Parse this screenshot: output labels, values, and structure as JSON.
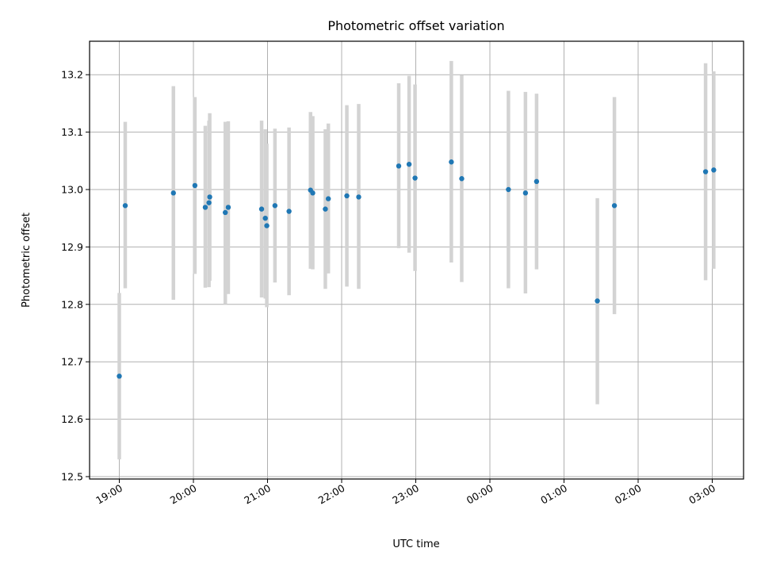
{
  "chart_data": {
    "type": "scatter",
    "title": "Photometric offset variation",
    "xlabel": "UTC time",
    "ylabel": "Photometric offset",
    "x_tick_labels": [
      "19:00",
      "20:00",
      "21:00",
      "22:00",
      "23:00",
      "00:00",
      "01:00",
      "02:00",
      "03:00"
    ],
    "x_tick_hours": [
      0,
      1,
      2,
      3,
      4,
      5,
      6,
      7,
      8
    ],
    "y_ticks": [
      12.5,
      12.6,
      12.7,
      12.8,
      12.9,
      13.0,
      13.1,
      13.2
    ],
    "y_tick_labels": [
      "12.5",
      "12.6",
      "12.7",
      "12.8",
      "12.9",
      "13.0",
      "13.1",
      "13.2"
    ],
    "xlim_hours_since_1900": [
      -0.4,
      8.42
    ],
    "ylim": [
      12.495,
      13.262
    ],
    "grid": true,
    "marker_color": "#1f77b4",
    "errorbar_color": "#d3d3d3",
    "points": [
      {
        "t": 0.0,
        "y": 12.675,
        "lo": 12.53,
        "hi": 12.82
      },
      {
        "t": 0.08,
        "y": 12.972,
        "lo": 12.828,
        "hi": 13.118
      },
      {
        "t": 0.73,
        "y": 12.994,
        "lo": 12.808,
        "hi": 13.18
      },
      {
        "t": 1.02,
        "y": 13.007,
        "lo": 12.853,
        "hi": 13.161
      },
      {
        "t": 1.16,
        "y": 12.969,
        "lo": 12.829,
        "hi": 13.111
      },
      {
        "t": 1.21,
        "y": 12.977,
        "lo": 12.83,
        "hi": 13.12
      },
      {
        "t": 1.22,
        "y": 12.987,
        "lo": 12.841,
        "hi": 13.133
      },
      {
        "t": 1.43,
        "y": 12.96,
        "lo": 12.8,
        "hi": 13.118
      },
      {
        "t": 1.47,
        "y": 12.969,
        "lo": 12.818,
        "hi": 13.119
      },
      {
        "t": 1.92,
        "y": 12.966,
        "lo": 12.812,
        "hi": 13.12
      },
      {
        "t": 1.97,
        "y": 12.95,
        "lo": 12.81,
        "hi": 13.105
      },
      {
        "t": 1.99,
        "y": 12.937,
        "lo": 12.795,
        "hi": 13.08
      },
      {
        "t": 2.1,
        "y": 12.972,
        "lo": 12.838,
        "hi": 13.106
      },
      {
        "t": 2.29,
        "y": 12.962,
        "lo": 12.816,
        "hi": 13.108
      },
      {
        "t": 2.58,
        "y": 12.999,
        "lo": 12.862,
        "hi": 13.135
      },
      {
        "t": 2.61,
        "y": 12.994,
        "lo": 12.861,
        "hi": 13.128
      },
      {
        "t": 2.78,
        "y": 12.966,
        "lo": 12.827,
        "hi": 13.105
      },
      {
        "t": 2.82,
        "y": 12.984,
        "lo": 12.854,
        "hi": 13.115
      },
      {
        "t": 3.07,
        "y": 12.989,
        "lo": 12.831,
        "hi": 13.147
      },
      {
        "t": 3.23,
        "y": 12.987,
        "lo": 12.827,
        "hi": 13.149
      },
      {
        "t": 3.77,
        "y": 13.041,
        "lo": 12.898,
        "hi": 13.185
      },
      {
        "t": 3.91,
        "y": 13.044,
        "lo": 12.89,
        "hi": 13.198
      },
      {
        "t": 3.99,
        "y": 13.02,
        "lo": 12.858,
        "hi": 13.183
      },
      {
        "t": 4.48,
        "y": 13.048,
        "lo": 12.873,
        "hi": 13.224
      },
      {
        "t": 4.62,
        "y": 13.019,
        "lo": 12.839,
        "hi": 13.199
      },
      {
        "t": 5.25,
        "y": 13.0,
        "lo": 12.828,
        "hi": 13.172
      },
      {
        "t": 5.48,
        "y": 12.994,
        "lo": 12.819,
        "hi": 13.17
      },
      {
        "t": 5.63,
        "y": 13.014,
        "lo": 12.861,
        "hi": 13.167
      },
      {
        "t": 6.45,
        "y": 12.806,
        "lo": 12.626,
        "hi": 12.985
      },
      {
        "t": 6.68,
        "y": 12.972,
        "lo": 12.783,
        "hi": 13.161
      },
      {
        "t": 7.91,
        "y": 13.031,
        "lo": 12.842,
        "hi": 13.22
      },
      {
        "t": 8.02,
        "y": 13.034,
        "lo": 12.862,
        "hi": 13.206
      }
    ]
  }
}
